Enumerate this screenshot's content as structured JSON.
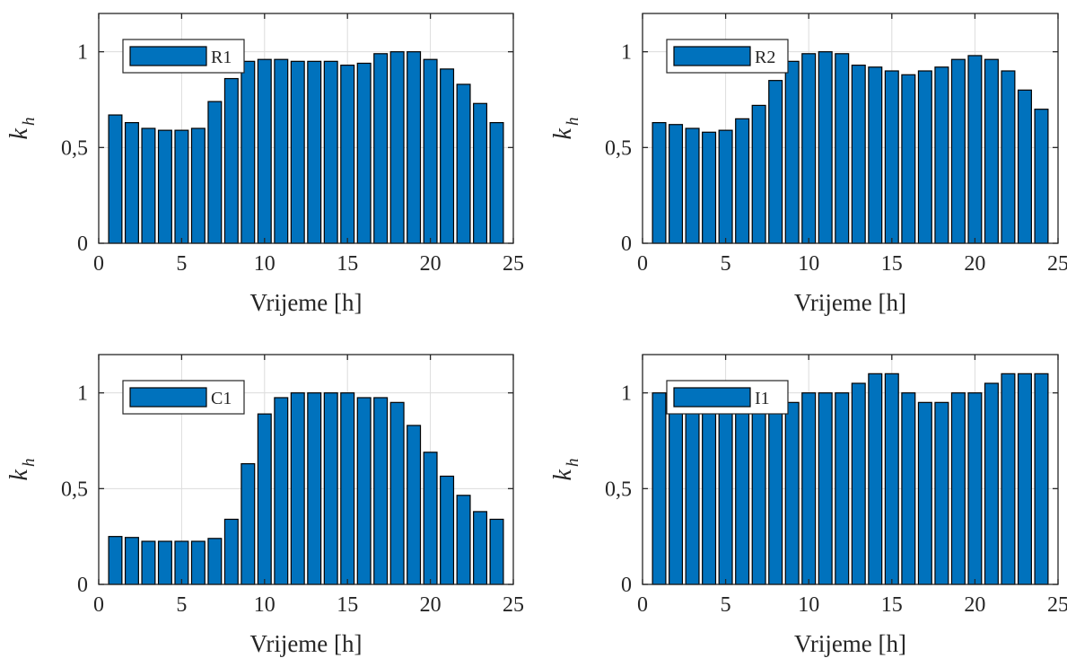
{
  "chart_data": [
    {
      "type": "bar",
      "x": [
        1,
        2,
        3,
        4,
        5,
        6,
        7,
        8,
        9,
        10,
        11,
        12,
        13,
        14,
        15,
        16,
        17,
        18,
        19,
        20,
        21,
        22,
        23,
        24
      ],
      "series": [
        {
          "name": "R1",
          "values": [
            0.67,
            0.63,
            0.6,
            0.59,
            0.59,
            0.6,
            0.74,
            0.86,
            0.95,
            0.96,
            0.96,
            0.95,
            0.95,
            0.95,
            0.93,
            0.94,
            0.99,
            1.0,
            1.0,
            0.96,
            0.91,
            0.83,
            0.73,
            0.63
          ]
        }
      ],
      "xlabel": "Vrijeme [h]",
      "ylabel": "k",
      "ylabel_subscript": "h",
      "xlim": [
        0,
        25
      ],
      "ylim": [
        0,
        1.2
      ],
      "xticks": [
        0,
        5,
        10,
        15,
        20,
        25
      ],
      "xtick_labels": [
        "0",
        "5",
        "10",
        "15",
        "20",
        "25"
      ],
      "yticks": [
        0,
        0.5,
        1
      ],
      "ytick_labels": [
        "0",
        "0,5",
        "1"
      ],
      "grid": true,
      "legend_position": "top-left",
      "bar_color": "#0072bd"
    },
    {
      "type": "bar",
      "x": [
        1,
        2,
        3,
        4,
        5,
        6,
        7,
        8,
        9,
        10,
        11,
        12,
        13,
        14,
        15,
        16,
        17,
        18,
        19,
        20,
        21,
        22,
        23,
        24
      ],
      "series": [
        {
          "name": "R2",
          "values": [
            0.63,
            0.62,
            0.6,
            0.58,
            0.59,
            0.65,
            0.72,
            0.85,
            0.95,
            0.99,
            1.0,
            0.99,
            0.93,
            0.92,
            0.9,
            0.88,
            0.9,
            0.92,
            0.96,
            0.98,
            0.96,
            0.9,
            0.8,
            0.7
          ]
        }
      ],
      "xlabel": "Vrijeme [h]",
      "ylabel": "k",
      "ylabel_subscript": "h",
      "xlim": [
        0,
        25
      ],
      "ylim": [
        0,
        1.2
      ],
      "xticks": [
        0,
        5,
        10,
        15,
        20,
        25
      ],
      "xtick_labels": [
        "0",
        "5",
        "10",
        "15",
        "20",
        "25"
      ],
      "yticks": [
        0,
        0.5,
        1
      ],
      "ytick_labels": [
        "0",
        "0,5",
        "1"
      ],
      "grid": true,
      "legend_position": "top-left",
      "bar_color": "#0072bd"
    },
    {
      "type": "bar",
      "x": [
        1,
        2,
        3,
        4,
        5,
        6,
        7,
        8,
        9,
        10,
        11,
        12,
        13,
        14,
        15,
        16,
        17,
        18,
        19,
        20,
        21,
        22,
        23,
        24
      ],
      "series": [
        {
          "name": "C1",
          "values": [
            0.25,
            0.245,
            0.225,
            0.225,
            0.225,
            0.225,
            0.24,
            0.34,
            0.63,
            0.89,
            0.975,
            1.0,
            1.0,
            1.0,
            1.0,
            0.975,
            0.975,
            0.95,
            0.83,
            0.69,
            0.565,
            0.465,
            0.38,
            0.34
          ]
        }
      ],
      "xlabel": "Vrijeme [h]",
      "ylabel": "k",
      "ylabel_subscript": "h",
      "xlim": [
        0,
        25
      ],
      "ylim": [
        0,
        1.2
      ],
      "xticks": [
        0,
        5,
        10,
        15,
        20,
        25
      ],
      "xtick_labels": [
        "0",
        "5",
        "10",
        "15",
        "20",
        "25"
      ],
      "yticks": [
        0,
        0.5,
        1
      ],
      "ytick_labels": [
        "0",
        "0,5",
        "1"
      ],
      "grid": true,
      "legend_position": "top-left",
      "bar_color": "#0072bd"
    },
    {
      "type": "bar",
      "x": [
        1,
        2,
        3,
        4,
        5,
        6,
        7,
        8,
        9,
        10,
        11,
        12,
        13,
        14,
        15,
        16,
        17,
        18,
        19,
        20,
        21,
        22,
        23,
        24
      ],
      "series": [
        {
          "name": "I1",
          "values": [
            1.0,
            0.95,
            0.95,
            0.95,
            0.95,
            0.95,
            0.95,
            0.95,
            0.95,
            1.0,
            1.0,
            1.0,
            1.05,
            1.1,
            1.1,
            1.0,
            0.95,
            0.95,
            1.0,
            1.0,
            1.05,
            1.1,
            1.1,
            1.1
          ]
        }
      ],
      "xlabel": "Vrijeme [h]",
      "ylabel": "k",
      "ylabel_subscript": "h",
      "xlim": [
        0,
        25
      ],
      "ylim": [
        0,
        1.2
      ],
      "xticks": [
        0,
        5,
        10,
        15,
        20,
        25
      ],
      "xtick_labels": [
        "0",
        "5",
        "10",
        "15",
        "20",
        "25"
      ],
      "yticks": [
        0,
        0.5,
        1
      ],
      "ytick_labels": [
        "0",
        "0,5",
        "1"
      ],
      "grid": true,
      "legend_position": "top-left",
      "bar_color": "#0072bd"
    }
  ]
}
